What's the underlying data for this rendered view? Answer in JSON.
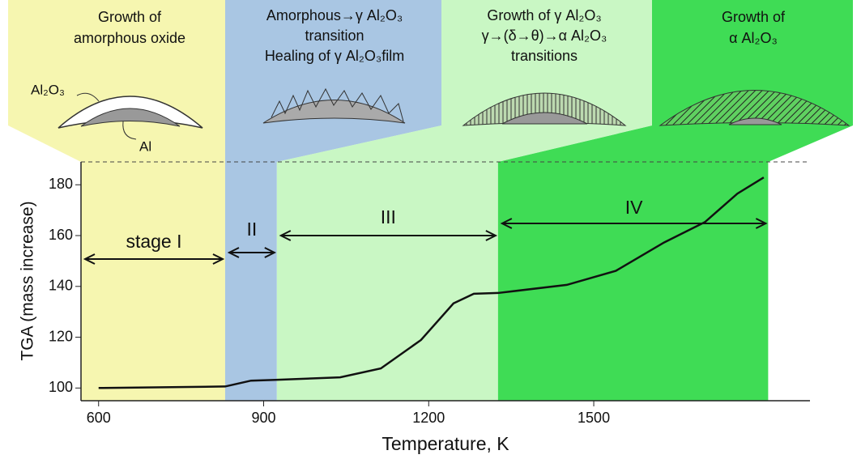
{
  "chart_data": {
    "type": "line",
    "x_label": "Temperature, K",
    "y_label": "TGA (mass increase)",
    "x": [
      600,
      830,
      877,
      921,
      1039,
      1113,
      1186,
      1245,
      1282,
      1326,
      1451,
      1540,
      1628,
      1702,
      1761,
      1809
    ],
    "values": [
      100,
      100.6,
      102.9,
      103.2,
      104.2,
      107.7,
      118.9,
      133.3,
      137.1,
      137.4,
      140.6,
      146.1,
      157.3,
      165.3,
      176.5,
      182.9
    ],
    "color": "#111111",
    "xlim": [
      568,
      1893
    ],
    "ylim": [
      95,
      189
    ],
    "xticks": [
      600,
      900,
      1200,
      1500
    ],
    "yticks": [
      100,
      120,
      140,
      160,
      180
    ],
    "stages": [
      {
        "label": "stage I",
        "start": 830,
        "end": 568,
        "color": "#f6f6b0",
        "panel": [
          "Growth of",
          "amorphous oxide"
        ],
        "notes": [
          "Al₂O₃",
          "Al"
        ]
      },
      {
        "label": "II",
        "start": 830,
        "end": 924,
        "color": "#a9c6e3",
        "panel": [
          "Amorphous→γ Al₂O₃",
          "transition",
          "Healing of γ Al₂O₃film"
        ]
      },
      {
        "label": "III",
        "start": 924,
        "end": 1326,
        "color": "#c9f7c4",
        "panel": [
          "Growth of  γ Al₂O₃",
          "γ→(δ→θ)→α Al₂O₃",
          "transitions"
        ]
      },
      {
        "label": "IV",
        "start": 1326,
        "end": 1817,
        "color": "#3fdc55",
        "panel": [
          "Growth of",
          "α Al₂O₃"
        ]
      }
    ]
  }
}
